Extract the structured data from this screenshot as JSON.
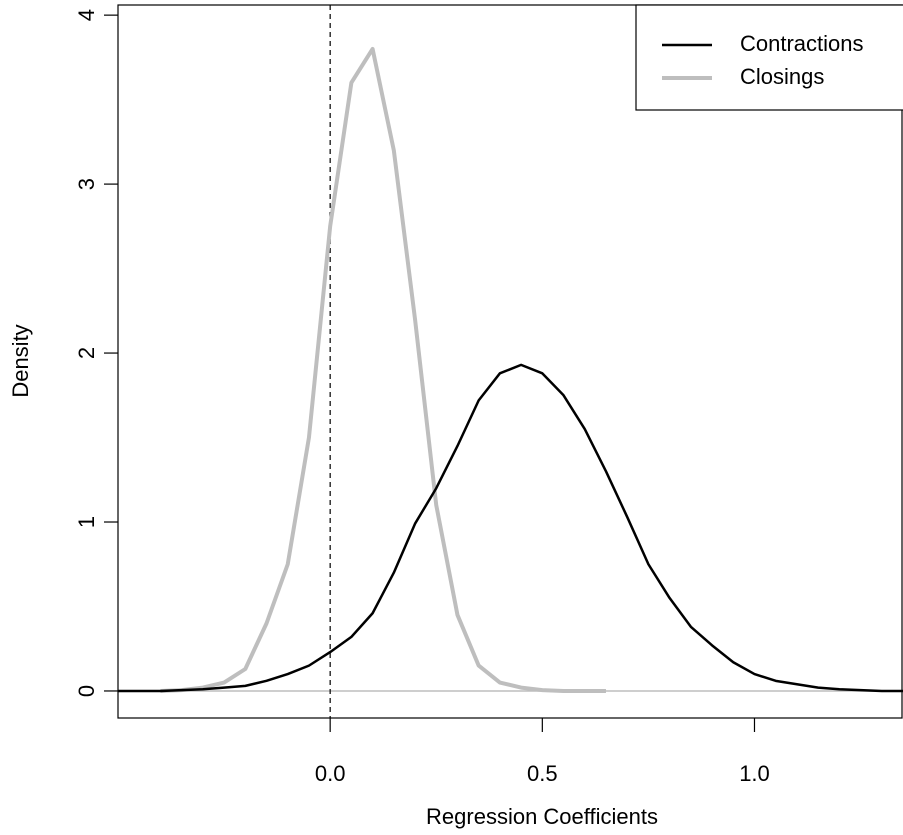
{
  "chart_data": {
    "type": "line",
    "xlabel": "Regression Coefficients",
    "ylabel": "Density",
    "x": [
      -0.5,
      -0.45,
      -0.4,
      -0.35,
      -0.3,
      -0.25,
      -0.2,
      -0.15,
      -0.1,
      -0.05,
      0,
      0.05,
      0.1,
      0.15,
      0.2,
      0.25,
      0.3,
      0.35,
      0.4,
      0.45,
      0.5,
      0.55,
      0.6,
      0.65,
      0.7,
      0.75,
      0.8,
      0.85,
      0.9,
      0.95,
      1.0,
      1.05,
      1.1,
      1.15,
      1.2,
      1.25,
      1.3,
      1.35
    ],
    "series": [
      {
        "name": "Contractions",
        "color": "#000000",
        "values": [
          0,
          0,
          0,
          0.005,
          0.01,
          0.02,
          0.03,
          0.06,
          0.1,
          0.15,
          0.23,
          0.32,
          0.46,
          0.7,
          0.99,
          1.2,
          1.45,
          1.72,
          1.88,
          1.93,
          1.88,
          1.75,
          1.55,
          1.3,
          1.03,
          0.75,
          0.55,
          0.38,
          0.27,
          0.17,
          0.1,
          0.06,
          0.04,
          0.02,
          0.01,
          0.005,
          0,
          0
        ]
      },
      {
        "name": "Closings",
        "color": "#bebebe",
        "values": [
          null,
          null,
          0,
          0.005,
          0.02,
          0.05,
          0.13,
          0.4,
          0.75,
          1.5,
          2.75,
          3.6,
          3.8,
          3.2,
          2.2,
          1.1,
          0.45,
          0.15,
          0.05,
          0.02,
          0.005,
          0,
          0,
          0,
          null,
          null,
          null,
          null,
          null,
          null,
          null,
          null,
          null,
          null,
          null,
          null,
          null,
          null
        ]
      }
    ],
    "xlim": [
      -0.5,
      1.35
    ],
    "ylim": [
      -0.16,
      4.06
    ],
    "xticks": [
      {
        "value": 0,
        "label": "0.0"
      },
      {
        "value": 0.5,
        "label": "0.5"
      },
      {
        "value": 1,
        "label": "1.0"
      }
    ],
    "yticks": [
      0,
      1,
      2,
      3,
      4
    ],
    "vline": 0,
    "hline": 0,
    "legend": "top right"
  }
}
